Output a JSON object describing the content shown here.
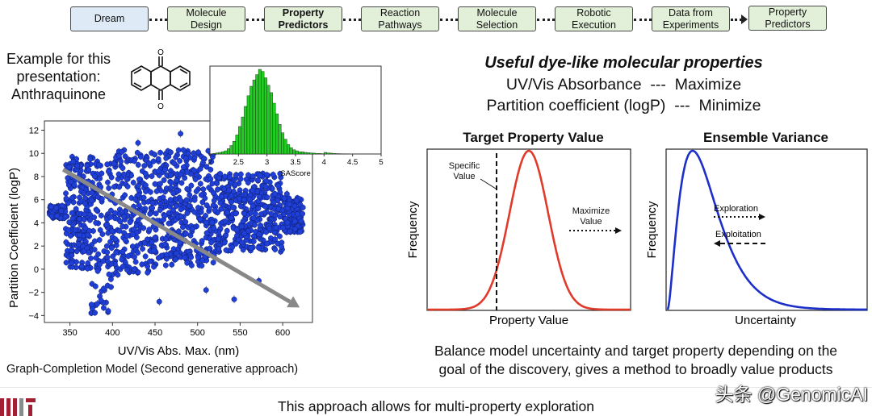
{
  "workflow": {
    "steps": [
      "Dream",
      "Molecule\nDesign",
      "Property\nPredictors",
      "Reaction\nPathways",
      "Molecule\nSelection",
      "Robotic\nExecution",
      "Data from\nExperiments",
      "Property\nPredictors"
    ]
  },
  "left": {
    "example_text": "Example for this\npresentation:\nAnthraquinone",
    "caption": "Graph-Completion Model (Second generative approach)"
  },
  "right": {
    "title": "Useful dye-like molecular properties",
    "line1": "UV/Vis Absorbance  ---  Maximize",
    "line2": "Partition coefficient (logP)  ---  Minimize",
    "balance_text": "Balance model uncertainty and target property depending on the\ngoal of the discovery, gives a method to broadly value products"
  },
  "target_panel": {
    "title": "Target Property Value",
    "ylabel": "Frequency",
    "xlabel": "Property Value",
    "specific_label": "Specific\nValue",
    "maximize_label": "Maximize\nValue"
  },
  "variance_panel": {
    "title": "Ensemble Variance",
    "ylabel": "Frequency",
    "xlabel": "Uncertainty",
    "exploration_label": "Exploration",
    "exploitation_label": "Exploitation"
  },
  "footer": {
    "text": "This approach allows for multi-property exploration",
    "watermark": "头条 @GenomicAI"
  },
  "chart_data": [
    {
      "type": "scatter",
      "xlabel": "UV/Vis Abs. Max. (nm)",
      "ylabel": "Partition Coefficient (logP)",
      "xlim": [
        320,
        635
      ],
      "ylim": [
        -4.6,
        12.8
      ],
      "xticks": [
        350,
        400,
        450,
        500,
        550,
        600
      ],
      "yticks": [
        -4,
        -2,
        0,
        2,
        4,
        6,
        8,
        10,
        12
      ],
      "color": "#1f3fd6",
      "note_points": "dense cloud of blue points with error bars",
      "arrow": {
        "from": [
          342,
          8.6
        ],
        "to": [
          620,
          -3.3
        ],
        "color": "#888888"
      }
    },
    {
      "type": "bar",
      "xlabel": "SAScore",
      "xlim": [
        2,
        5
      ],
      "xticks": [
        2,
        2.5,
        3,
        3.5,
        4,
        4.5,
        5
      ],
      "color": "#22cc22",
      "bin_start": 2.05,
      "bin_width": 0.05,
      "values": [
        0.5,
        1,
        1.5,
        2,
        3,
        5,
        8,
        12,
        18,
        26,
        35,
        45,
        55,
        64,
        70,
        75,
        80,
        78,
        72,
        65,
        58,
        48,
        38,
        28,
        20,
        14,
        9,
        6,
        4,
        3,
        2,
        2,
        1.5,
        1.2,
        1,
        0.8,
        0.5,
        0.5,
        0.3,
        1.5,
        1,
        0.8,
        0.5,
        0.4,
        0.3,
        0.2,
        0.2,
        0.1
      ]
    }
  ]
}
